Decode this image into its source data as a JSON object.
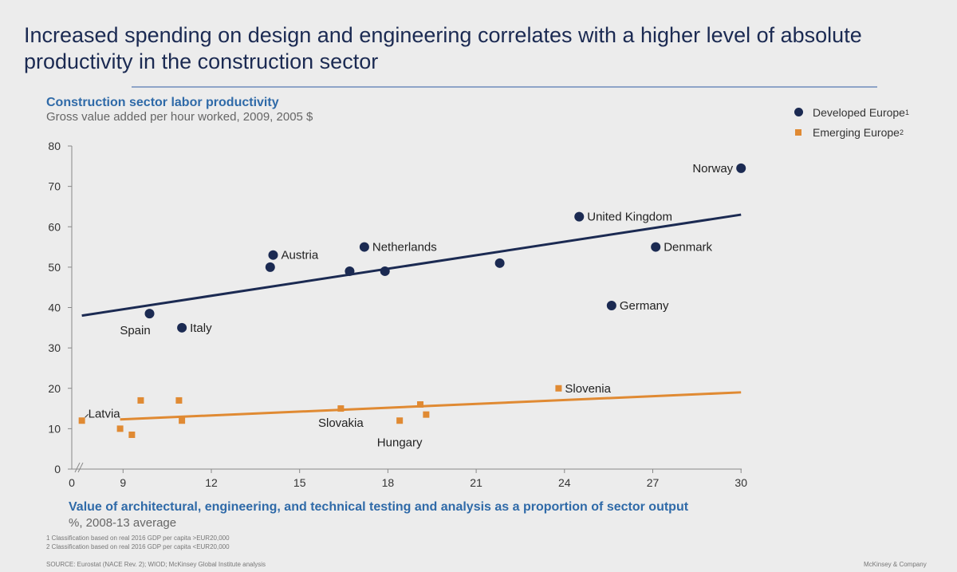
{
  "header": {
    "title": "Increased spending on design and engineering correlates with a higher level of absolute productivity in the construction sector",
    "subtitle": "Construction sector labor productivity",
    "subtitle2": "Gross value added per hour worked, 2009, 2005 $"
  },
  "legend": {
    "developed": "Developed Europe",
    "developed_sup": "1",
    "emerging": "Emerging Europe",
    "emerging_sup": "2"
  },
  "axis": {
    "xtitle": "Value of architectural, engineering, and technical testing and analysis as a proportion of sector output",
    "xsub": "%, 2008-13 average"
  },
  "footnotes": [
    "1 Classification based on real 2016 GDP per capita >EUR20,000",
    "2 Classification based on real 2016 GDP per capita <EUR20,000"
  ],
  "source": "SOURCE: Eurostat (NACE Rev. 2); WIOD; McKinsey Global Institute analysis",
  "brand": "McKinsey & Company",
  "colors": {
    "developed": "#1b2a52",
    "emerging": "#e08a33",
    "accent_text": "#2f6aa8"
  },
  "chart_data": {
    "type": "scatter",
    "title": "Construction sector labor productivity",
    "subtitle": "Gross value added per hour worked, 2009, 2005 $",
    "xlabel": "Value of architectural, engineering, and technical testing and analysis as a proportion of sector output",
    "ylabel": "",
    "x_break": true,
    "xlim": [
      7.3,
      30
    ],
    "ylim": [
      0,
      80
    ],
    "x_ticks": [
      9,
      12,
      15,
      18,
      21,
      24,
      27,
      30
    ],
    "x_zero_label": "0",
    "y_ticks": [
      0,
      10,
      20,
      30,
      40,
      50,
      60,
      70,
      80
    ],
    "legend_position": "top-right",
    "grid": false,
    "series": [
      {
        "name": "Developed Europe",
        "marker": "circle",
        "points": [
          {
            "x": 9.9,
            "y": 38.5,
            "label": "Spain"
          },
          {
            "x": 11.0,
            "y": 35,
            "label": "Italy"
          },
          {
            "x": 14.1,
            "y": 53,
            "label": "Austria"
          },
          {
            "x": 14.0,
            "y": 50,
            "label": ""
          },
          {
            "x": 17.2,
            "y": 55,
            "label": "Netherlands"
          },
          {
            "x": 16.7,
            "y": 49,
            "label": ""
          },
          {
            "x": 17.9,
            "y": 49,
            "label": ""
          },
          {
            "x": 21.8,
            "y": 51,
            "label": ""
          },
          {
            "x": 24.5,
            "y": 62.5,
            "label": "United Kingdom"
          },
          {
            "x": 27.1,
            "y": 55,
            "label": "Denmark"
          },
          {
            "x": 25.6,
            "y": 40.5,
            "label": "Germany"
          },
          {
            "x": 30.0,
            "y": 74.5,
            "label": "Norway"
          }
        ],
        "trend": [
          [
            7.6,
            38
          ],
          [
            30.0,
            63
          ]
        ]
      },
      {
        "name": "Emerging Europe",
        "marker": "square",
        "points": [
          {
            "x": 7.6,
            "y": 12,
            "label": "Latvia"
          },
          {
            "x": 8.9,
            "y": 10,
            "label": ""
          },
          {
            "x": 9.3,
            "y": 8.5,
            "label": ""
          },
          {
            "x": 9.6,
            "y": 17,
            "label": ""
          },
          {
            "x": 10.9,
            "y": 17,
            "label": ""
          },
          {
            "x": 11.0,
            "y": 12,
            "label": ""
          },
          {
            "x": 16.4,
            "y": 15,
            "label": "Slovakia"
          },
          {
            "x": 18.4,
            "y": 12,
            "label": "Hungary"
          },
          {
            "x": 19.1,
            "y": 16,
            "label": ""
          },
          {
            "x": 19.3,
            "y": 13.5,
            "label": ""
          },
          {
            "x": 23.8,
            "y": 20,
            "label": "Slovenia"
          }
        ],
        "trend": [
          [
            8.9,
            12.3
          ],
          [
            30.0,
            19
          ]
        ]
      }
    ]
  }
}
